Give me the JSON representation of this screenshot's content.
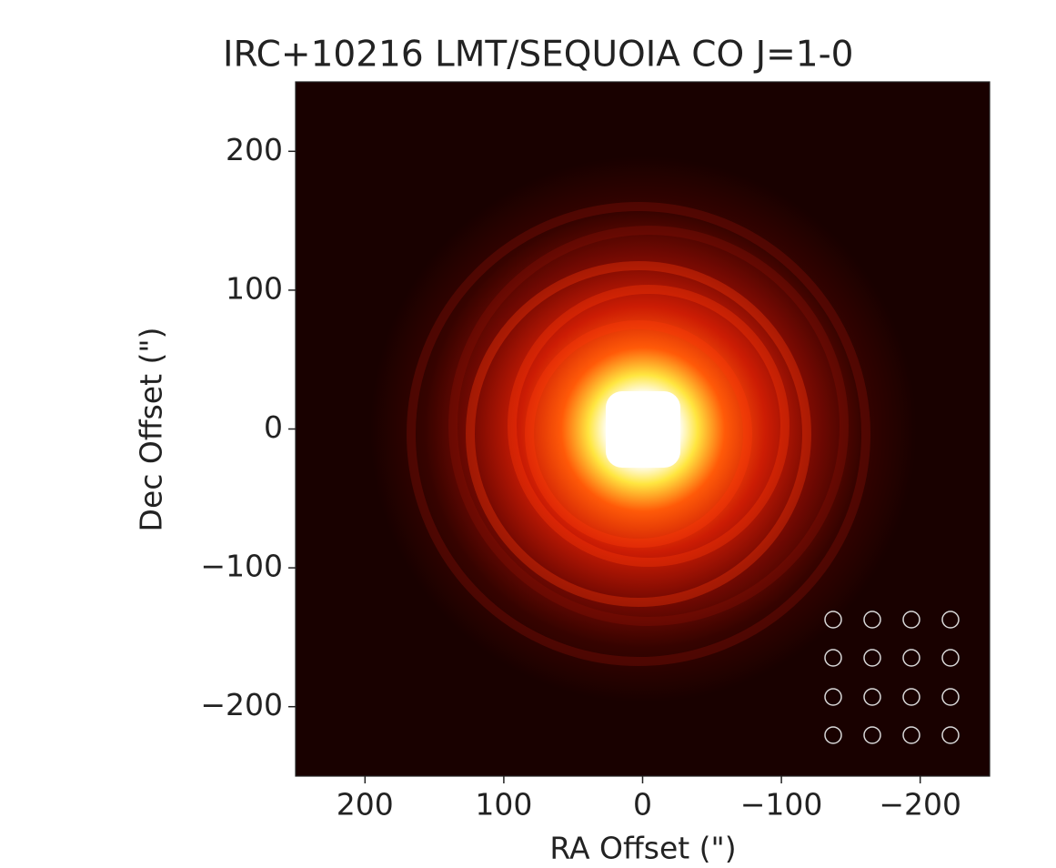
{
  "chart_data": {
    "type": "image",
    "title": "IRC+10216   LMT/SEQUOIA    CO J=1-0",
    "x_label": "RA Offset (\")",
    "y_label": "Dec Offset (\")",
    "xlim": [
      250,
      -250
    ],
    "ylim": [
      -250,
      250
    ],
    "xticks": [
      200,
      100,
      0,
      {
        "value": -100,
        "label": "−100"
      },
      {
        "value": -200,
        "label": "−200"
      }
    ],
    "yticks": [
      {
        "value": -200,
        "label": "−200"
      },
      {
        "value": -100,
        "label": "−100"
      },
      0,
      100,
      200
    ]
  }
}
